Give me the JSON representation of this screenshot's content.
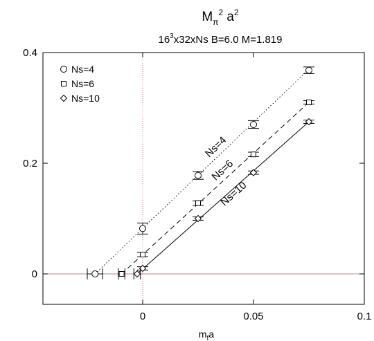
{
  "chart_data": {
    "type": "scatter",
    "title": {
      "base": "M",
      "sub1": "π",
      "sup1": "2",
      "mid": " a",
      "sup2": "2"
    },
    "subtitle": {
      "pre": "16",
      "sup": "3",
      "post": "x32xNs B=6.0 M=1.819"
    },
    "xlabel": {
      "base": "m",
      "sub": "f",
      "post": "a"
    },
    "ylabel": "",
    "xlim": [
      -0.045,
      0.1
    ],
    "ylim": [
      -0.055,
      0.4
    ],
    "xticks": [
      0,
      0.05,
      0.1
    ],
    "xtick_labels": [
      "0",
      "0.05",
      "0.1"
    ],
    "yticks": [
      0,
      0.2,
      0.4
    ],
    "ytick_labels": [
      "0",
      "0.2",
      "0.4"
    ],
    "grid": false,
    "reference_lines": {
      "y0_color": "#c08080",
      "x0_color": "#c08080"
    },
    "legend_position": "top-left",
    "series": [
      {
        "name": "Ns=4",
        "marker": "circle",
        "line_style": "dotted",
        "line_label": "Ns=4",
        "points": [
          {
            "x": 0,
            "y": 0.082,
            "err": 0.01
          },
          {
            "x": 0.025,
            "y": 0.178,
            "err": 0.007
          },
          {
            "x": 0.05,
            "y": 0.27,
            "err": 0.007
          },
          {
            "x": 0.075,
            "y": 0.368,
            "err": 0.006
          }
        ],
        "extrapolated": {
          "x": -0.0215,
          "y": 0,
          "xerr": 0.0035
        },
        "fit": [
          [
            -0.0215,
            0
          ],
          [
            0.075,
            0.37
          ]
        ]
      },
      {
        "name": "Ns=6",
        "marker": "square",
        "line_style": "dashed",
        "line_label": "Ns=6",
        "points": [
          {
            "x": 0,
            "y": 0.035,
            "err": 0.004
          },
          {
            "x": 0.025,
            "y": 0.128,
            "err": 0.004
          },
          {
            "x": 0.05,
            "y": 0.216,
            "err": 0.004
          },
          {
            "x": 0.075,
            "y": 0.31,
            "err": 0.003
          }
        ],
        "extrapolated": {
          "x": -0.0095,
          "y": 0,
          "xerr": 0.0015
        },
        "fit": [
          [
            -0.0095,
            0
          ],
          [
            0.075,
            0.31
          ]
        ]
      },
      {
        "name": "Ns=10",
        "marker": "diamond",
        "line_style": "solid",
        "line_label": "Ns=10",
        "points": [
          {
            "x": 0,
            "y": 0.01,
            "err": 0.003
          },
          {
            "x": 0.025,
            "y": 0.1,
            "err": 0.003
          },
          {
            "x": 0.05,
            "y": 0.183,
            "err": 0.003
          },
          {
            "x": 0.075,
            "y": 0.275,
            "err": 0.003
          }
        ],
        "extrapolated": {
          "x": -0.0025,
          "y": 0,
          "xerr": 0.0015
        },
        "fit": [
          [
            -0.0025,
            0
          ],
          [
            0.075,
            0.275
          ]
        ]
      }
    ]
  }
}
